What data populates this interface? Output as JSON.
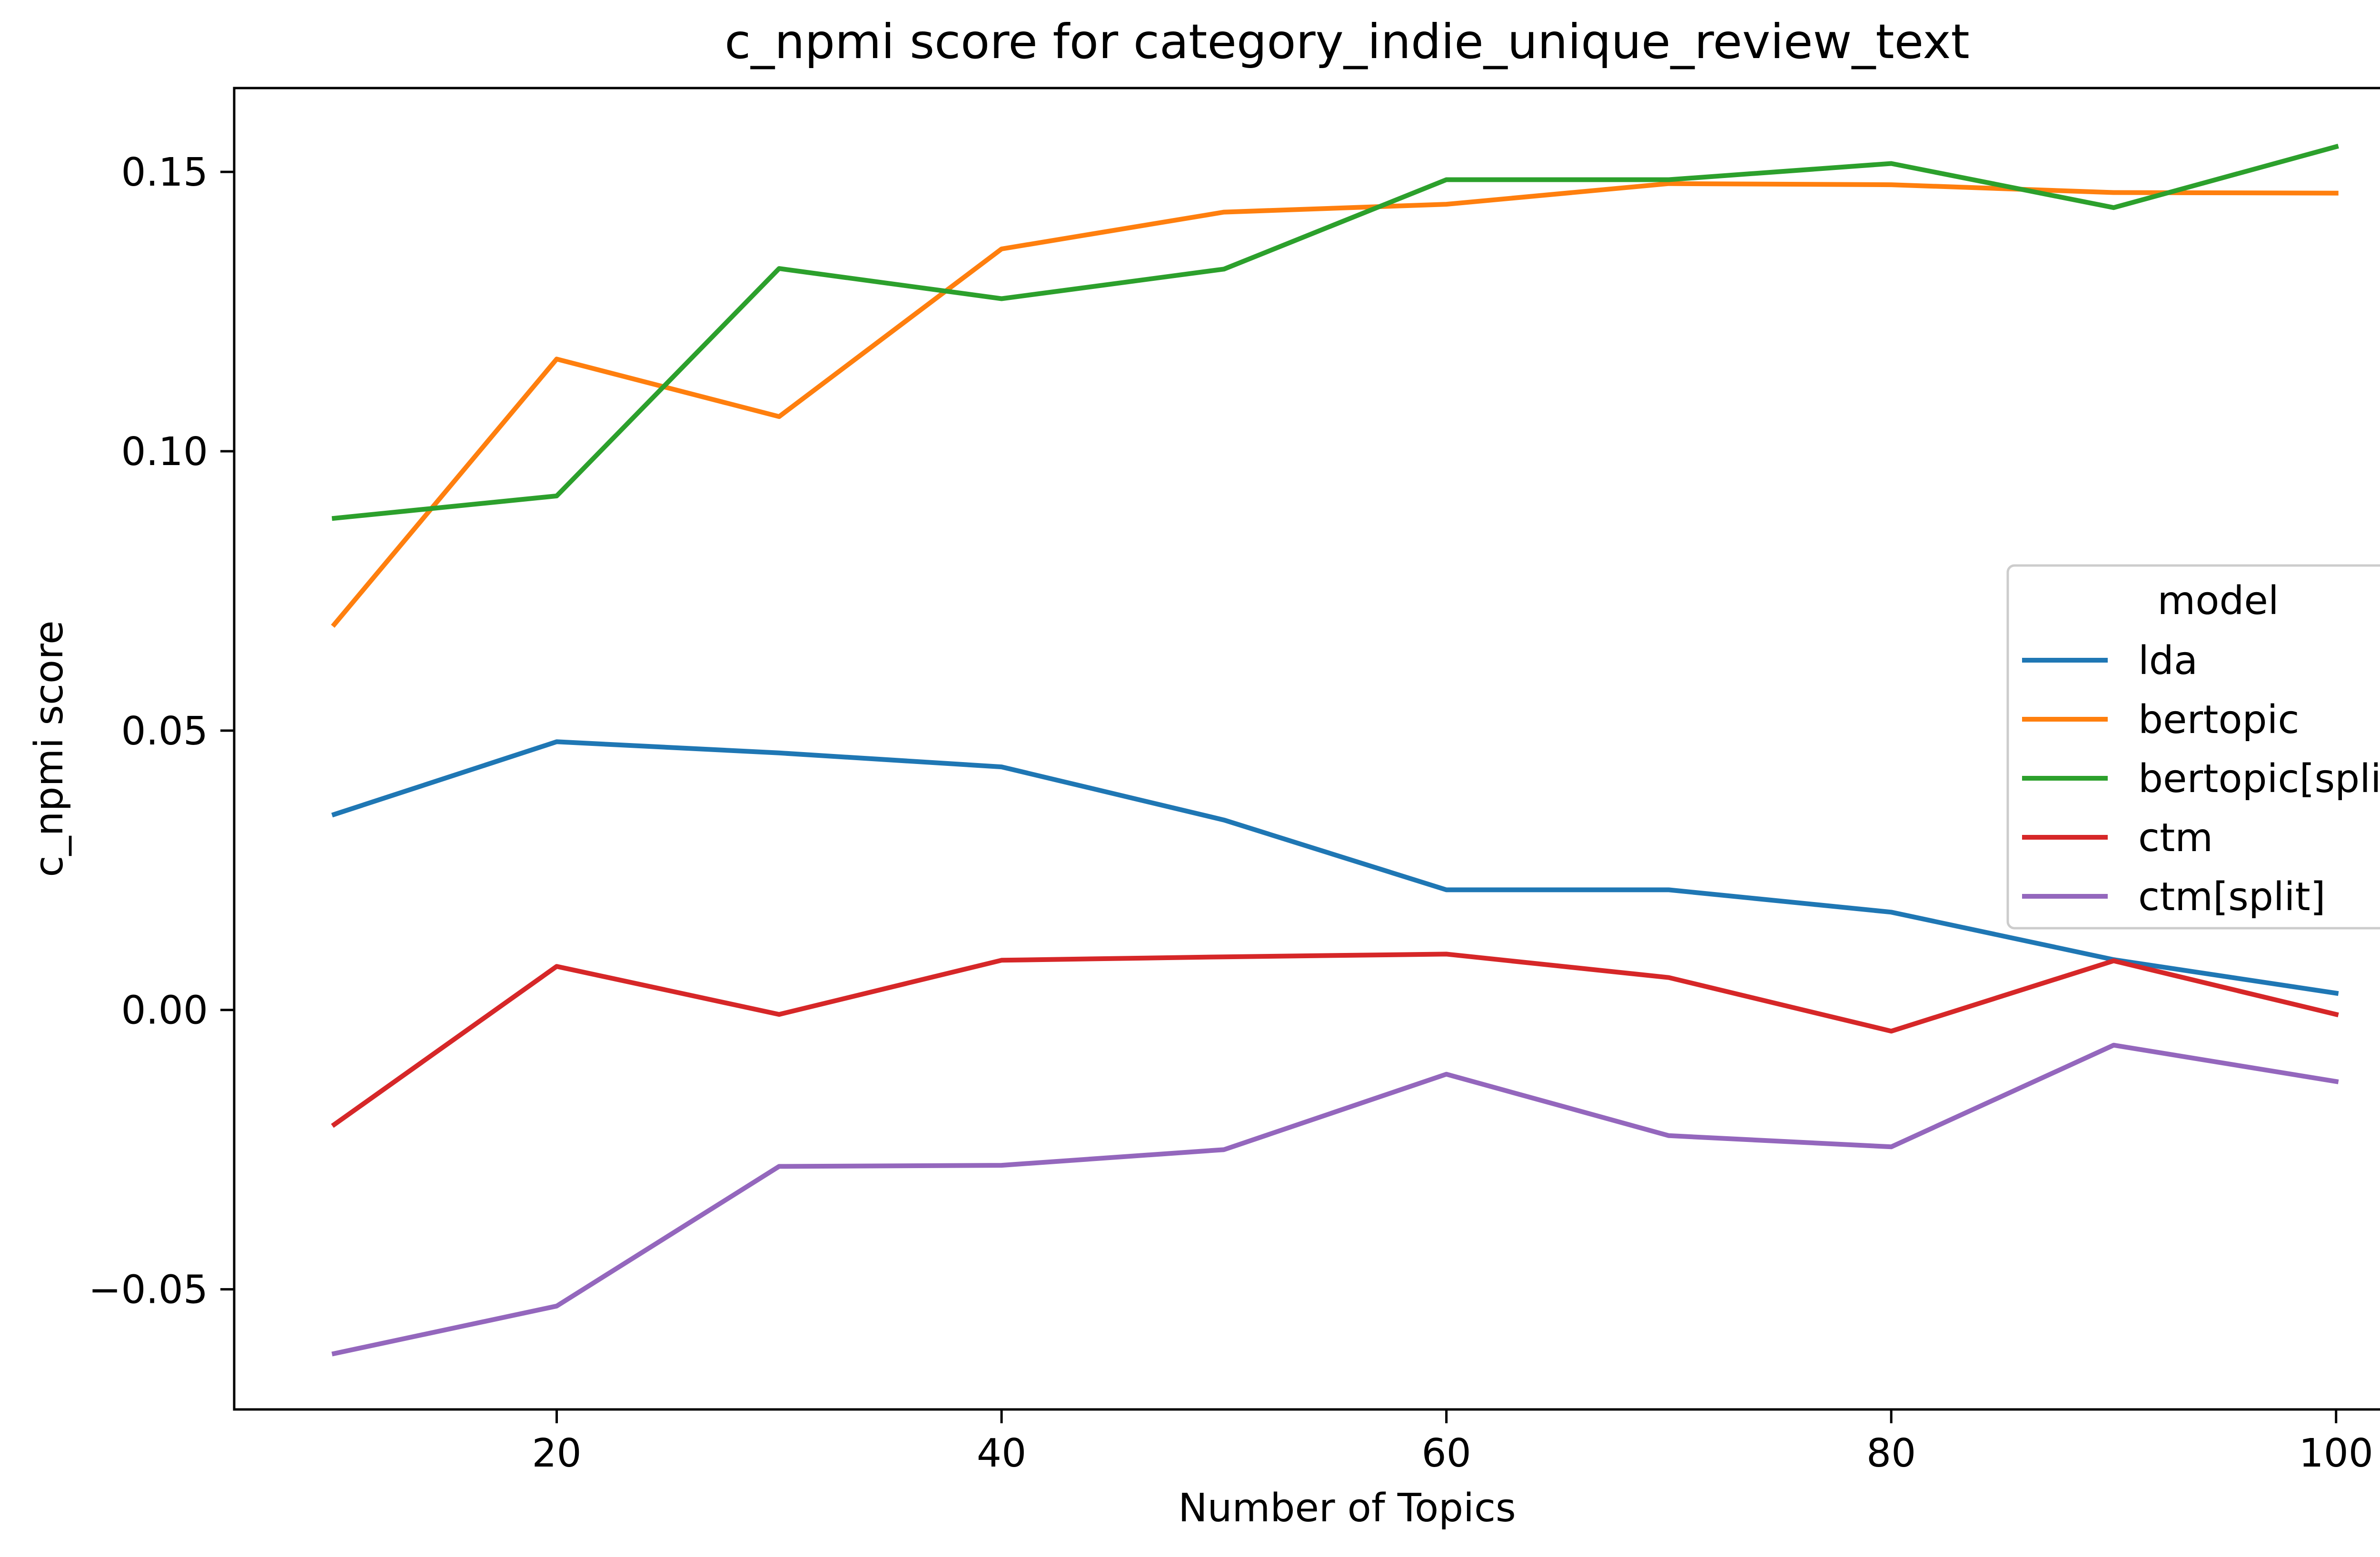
{
  "chart_data": {
    "type": "line",
    "title": "c_npmi score for category_indie_unique_review_text",
    "xlabel": "Number of Topics",
    "ylabel": "c_npmi score",
    "x": [
      10,
      20,
      30,
      40,
      50,
      60,
      70,
      80,
      90,
      100
    ],
    "xlim": [
      5.5,
      104.5
    ],
    "ylim": [
      -0.0715,
      0.165
    ],
    "xticks": [
      20,
      40,
      60,
      80,
      100
    ],
    "xtick_labels": [
      "20",
      "40",
      "60",
      "80",
      "100"
    ],
    "yticks": [
      -0.05,
      0.0,
      0.05,
      0.1,
      0.15
    ],
    "ytick_labels": [
      "−0.05",
      "0.00",
      "0.05",
      "0.10",
      "0.15"
    ],
    "grid": false,
    "legend": {
      "title": "model",
      "placement": "center-right"
    },
    "series": [
      {
        "name": "lda",
        "color": "#1f77b4",
        "values": [
          0.035,
          0.048,
          0.046,
          0.0435,
          0.034,
          0.0215,
          0.0215,
          0.0175,
          0.009,
          0.003
        ]
      },
      {
        "name": "bertopic",
        "color": "#ff7f0e",
        "values": [
          0.069,
          0.1165,
          0.1062,
          0.1362,
          0.1428,
          0.1442,
          0.1479,
          0.1477,
          0.1463,
          0.1462
        ]
      },
      {
        "name": "bertopic[split]",
        "color": "#2ca02c",
        "values": [
          0.088,
          0.092,
          0.1327,
          0.1273,
          0.1326,
          0.1486,
          0.1486,
          0.1515,
          0.1436,
          0.1545
        ]
      },
      {
        "name": "ctm",
        "color": "#d62728",
        "values": [
          -0.0205,
          0.0078,
          -0.0008,
          0.0089,
          0.0095,
          0.01,
          0.0058,
          -0.0038,
          0.0088,
          -0.0008
        ]
      },
      {
        "name": "ctm[split]",
        "color": "#9467bd",
        "values": [
          -0.0615,
          -0.053,
          -0.028,
          -0.0278,
          -0.025,
          -0.0115,
          -0.0225,
          -0.0245,
          -0.0063,
          -0.0128
        ]
      }
    ]
  }
}
